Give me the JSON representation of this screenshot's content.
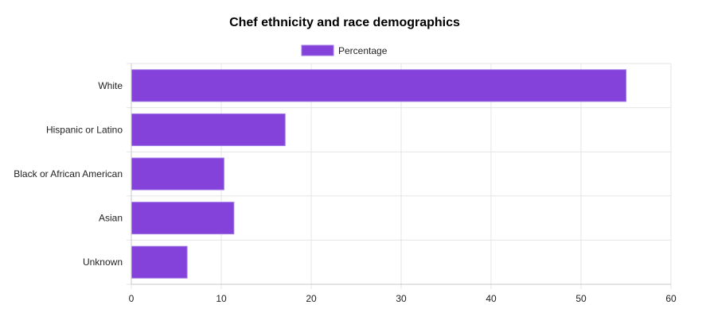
{
  "chart_data": {
    "type": "bar",
    "orientation": "horizontal",
    "title": "Chef ethnicity and race demographics",
    "categories": [
      "White",
      "Hispanic or Latino",
      "Black or African American",
      "Asian",
      "Unknown"
    ],
    "series": [
      {
        "name": "Percentage",
        "values": [
          55,
          17.1,
          10.3,
          11.4,
          6.2
        ]
      }
    ],
    "xlim": [
      0,
      60
    ],
    "x_ticks": [
      "0",
      "10",
      "20",
      "30",
      "40",
      "50",
      "60"
    ],
    "grid": true,
    "legend_position": "top-center",
    "colors": {
      "bar_fill": "#8542db",
      "bar_border": "#a07ae6"
    }
  }
}
